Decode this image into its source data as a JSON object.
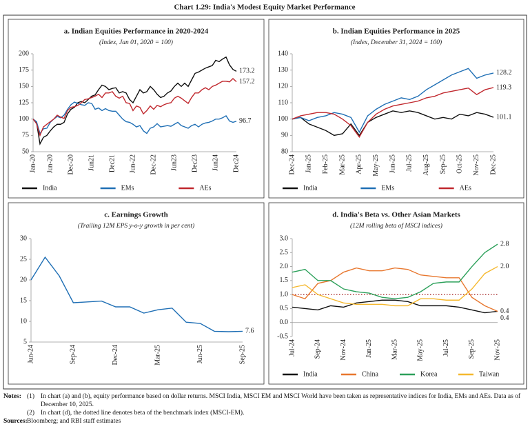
{
  "title": "Chart 1.29: India's Modest Equity Market Performance",
  "chart_data": [
    {
      "type": "line",
      "title": "a. Indian Equities Performance in 2020-2024",
      "subtitle": "(Index, Jan 01, 2020 = 100)",
      "categories": [
        "Jan-20",
        null,
        null,
        null,
        null,
        "Jun-20",
        null,
        null,
        null,
        null,
        null,
        "Dec-20",
        null,
        null,
        null,
        null,
        null,
        "Jun21",
        null,
        null,
        null,
        null,
        null,
        "Dec21",
        null,
        null,
        null,
        null,
        null,
        "Jun-22",
        null,
        null,
        null,
        null,
        null,
        "Dec-22",
        null,
        null,
        null,
        null,
        null,
        "Jun23",
        null,
        null,
        null,
        null,
        null,
        "Dec23",
        null,
        null,
        null,
        null,
        null,
        "Jun24",
        null,
        null,
        null,
        null,
        null,
        "Dec24"
      ],
      "series": [
        {
          "name": "India",
          "color": "#111111",
          "values": [
            100,
            95,
            62,
            72,
            75,
            82,
            88,
            92,
            92,
            95,
            108,
            115,
            118,
            125,
            127,
            125,
            130,
            135,
            137,
            145,
            152,
            150,
            145,
            147,
            148,
            140,
            142,
            140,
            130,
            125,
            135,
            145,
            140,
            142,
            150,
            145,
            138,
            133,
            135,
            140,
            143,
            150,
            155,
            150,
            155,
            150,
            160,
            170,
            172,
            175,
            178,
            180,
            182,
            190,
            188,
            192,
            195,
            183,
            176,
            173.2
          ]
        },
        {
          "name": "EMs",
          "color": "#1f6fb5",
          "values": [
            100,
            96,
            78,
            85,
            86,
            95,
            100,
            104,
            102,
            106,
            115,
            122,
            126,
            124,
            122,
            121,
            125,
            124,
            115,
            117,
            113,
            116,
            113,
            112,
            112,
            106,
            100,
            96,
            95,
            92,
            88,
            90,
            82,
            78,
            86,
            88,
            93,
            88,
            89,
            90,
            89,
            92,
            95,
            90,
            88,
            86,
            90,
            92,
            88,
            92,
            94,
            95,
            97,
            100,
            100,
            102,
            105,
            97,
            95,
            96.7
          ]
        },
        {
          "name": "AEs",
          "color": "#c0272d",
          "values": [
            100,
            93,
            75,
            88,
            92,
            96,
            100,
            106,
            103,
            101,
            113,
            118,
            119,
            121,
            125,
            130,
            131,
            133,
            135,
            138,
            133,
            140,
            140,
            142,
            135,
            132,
            135,
            125,
            124,
            113,
            120,
            118,
            108,
            113,
            120,
            115,
            121,
            119,
            122,
            124,
            125,
            132,
            135,
            132,
            128,
            124,
            133,
            140,
            140,
            145,
            148,
            145,
            150,
            152,
            155,
            158,
            158,
            157,
            162,
            157.2
          ]
        }
      ],
      "ylim": [
        50,
        200
      ],
      "yticks": [
        50,
        75,
        100,
        125,
        150,
        175,
        200
      ]
    },
    {
      "type": "line",
      "title": "b. Indian Equities Performance in 2025",
      "subtitle": "(Index, December 31, 2024 = 100)",
      "categories": [
        "Dec-24",
        null,
        "Jan-25",
        null,
        "Feb-25",
        null,
        "Mar-25",
        null,
        "Apr-25",
        null,
        "May-25",
        null,
        "Jun-25",
        null,
        "Jul-25",
        null,
        "Aug-25",
        null,
        "Sep-25",
        null,
        "Oct-25",
        null,
        "Nov-25",
        null,
        "Dec-25"
      ],
      "series": [
        {
          "name": "India",
          "color": "#111111",
          "values": [
            100,
            101,
            97,
            95,
            93,
            90,
            91,
            97,
            90,
            98,
            101,
            103,
            105,
            104,
            105,
            104,
            102,
            100,
            101,
            100,
            103,
            102,
            104,
            103,
            101.1
          ]
        },
        {
          "name": "EMs",
          "color": "#1f6fb5",
          "values": [
            100,
            101,
            99,
            101,
            102,
            104,
            103,
            101,
            92,
            102,
            106,
            109,
            111,
            113,
            112,
            114,
            118,
            121,
            124,
            127,
            129,
            131,
            125,
            127,
            128.2
          ]
        },
        {
          "name": "AEs",
          "color": "#c0272d",
          "values": [
            100,
            102,
            103,
            104,
            104,
            103,
            100,
            96,
            89,
            98,
            103,
            106,
            108,
            109,
            110,
            111,
            113,
            114,
            116,
            117,
            118,
            119,
            115,
            118,
            119.3
          ]
        }
      ],
      "ylim": [
        80,
        140
      ],
      "yticks": [
        80,
        90,
        100,
        110,
        120,
        130,
        140
      ]
    },
    {
      "type": "line",
      "title": "c. Earnings Growth",
      "subtitle": "(Trailing 12M EPS y-o-y growth in per cent)",
      "categories": [
        "Jun-24",
        null,
        null,
        "Sep-24",
        null,
        null,
        "Dec-24",
        null,
        null,
        "Mar-25",
        null,
        null,
        "Jun-25",
        null,
        null,
        "Sep-25"
      ],
      "values": [
        20,
        25.5,
        21,
        14.5,
        14.7,
        14.9,
        13.5,
        13.5,
        12,
        12.8,
        13.2,
        9.8,
        9.5,
        7.6,
        7.5,
        7.6
      ],
      "color": "#1f6fb5",
      "ylim": [
        5,
        30
      ],
      "yticks": [
        5,
        10,
        15,
        20,
        25,
        30
      ]
    },
    {
      "type": "line",
      "title": "d. India's Beta vs. Other Asian Markets",
      "subtitle": "(12M rolling beta of MSCI indices)",
      "categories": [
        "Jul-24",
        null,
        "Sep-24",
        null,
        "Nov-24",
        null,
        "Jan-25",
        null,
        "Mar-25",
        null,
        "May-25",
        null,
        "Jul-25",
        null,
        "Sep-25",
        null,
        "Nov-25"
      ],
      "series": [
        {
          "name": "India",
          "color": "#111111",
          "values": [
            0.55,
            0.5,
            0.45,
            0.6,
            0.55,
            0.7,
            0.75,
            0.8,
            0.8,
            0.75,
            0.6,
            0.6,
            0.6,
            0.55,
            0.45,
            0.35,
            0.4
          ]
        },
        {
          "name": "China",
          "color": "#e8772e",
          "values": [
            1.0,
            0.85,
            1.4,
            1.5,
            1.8,
            1.95,
            1.85,
            1.85,
            1.95,
            1.9,
            1.7,
            1.65,
            1.6,
            1.6,
            0.9,
            0.6,
            0.4
          ]
        },
        {
          "name": "Korea",
          "color": "#2ca05a",
          "values": [
            1.8,
            1.9,
            1.5,
            1.5,
            1.2,
            1.1,
            1.05,
            0.9,
            0.85,
            0.9,
            1.1,
            1.4,
            1.45,
            1.45,
            2.0,
            2.5,
            2.8
          ]
        },
        {
          "name": "Taiwan",
          "color": "#f5b82e",
          "values": [
            1.25,
            1.35,
            1.0,
            0.85,
            0.7,
            0.65,
            0.65,
            0.65,
            0.6,
            0.6,
            0.85,
            0.85,
            0.8,
            0.8,
            1.2,
            1.75,
            2.0
          ],
          "value_labels": [
            null,
            null,
            null,
            null,
            null,
            null,
            null,
            null,
            null,
            null,
            null,
            null,
            null,
            null,
            null,
            null,
            "2.0"
          ]
        }
      ],
      "reference_line": 1.0,
      "reference_color": "#a01818",
      "ylim": [
        -0.5,
        3.0
      ],
      "yticks": [
        {
          "value": 3,
          "label": "3.0"
        },
        2.5,
        {
          "value": 2,
          "label": "2.0"
        },
        1.5,
        {
          "value": 1,
          "label": "1.0"
        },
        0.5,
        {
          "value": 0,
          "label": "0.0"
        },
        -0.5
      ]
    }
  ],
  "notes_label": "Notes:",
  "notes": [
    {
      "marker": "(1)",
      "text": "In chart (a) and (b), equity performance based on dollar returns. MSCI India, MSCI EM and MSCI World have been taken as representative indices for India, EMs and AEs. Data as of December 10, 2025."
    },
    {
      "marker": "(2)",
      "text": "In chart (d), the dotted line denotes beta of the benchmark index (MSCI-EM)."
    }
  ],
  "sources_label": "Sources:",
  "sources": "Bloomberg; and RBI staff estimates"
}
